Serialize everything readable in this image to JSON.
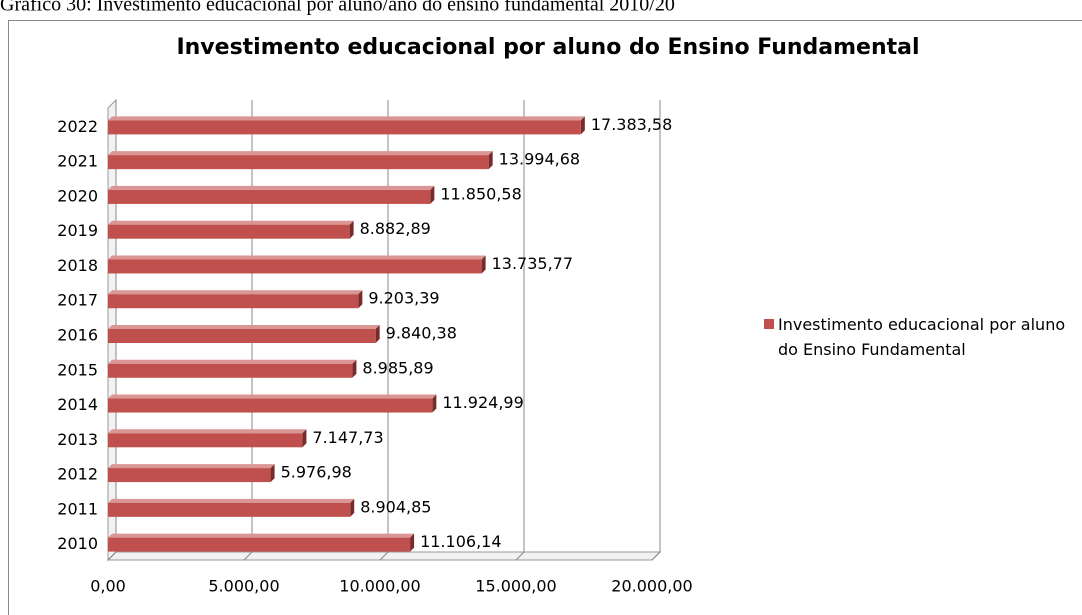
{
  "caption": "Gráfico 30: Investimento educacional por aluno/ano do ensino fundamental 2010/20",
  "chart_data": {
    "type": "bar",
    "orientation": "horizontal",
    "title": "Investimento educacional por aluno do Ensino Fundamental",
    "categories": [
      "2010",
      "2011",
      "2012",
      "2013",
      "2014",
      "2015",
      "2016",
      "2017",
      "2018",
      "2019",
      "2020",
      "2021",
      "2022"
    ],
    "series": [
      {
        "name": "Investimento educacional por aluno do Ensino Fundamental",
        "color": "#c0504d",
        "values": [
          11106.14,
          8904.85,
          5976.98,
          7147.73,
          11924.99,
          8985.89,
          9840.38,
          9203.39,
          13735.77,
          8882.89,
          11850.58,
          13994.68,
          17383.58
        ],
        "value_labels": [
          "11.106,14",
          "8.904,85",
          "5.976,98",
          "7.147,73",
          "11.924,99",
          "8.985,89",
          "9.840,38",
          "9.203,39",
          "13.735,77",
          "8.882,89",
          "11.850,58",
          "13.994,68",
          "17.383,58"
        ]
      }
    ],
    "xlim": [
      0,
      20000
    ],
    "xticks": [
      {
        "value": 0,
        "label": "0,00"
      },
      {
        "value": 5000,
        "label": "5.000,00"
      },
      {
        "value": 10000,
        "label": "10.000,00"
      },
      {
        "value": 15000,
        "label": "15.000,00"
      },
      {
        "value": 20000,
        "label": "20.000,00"
      }
    ],
    "grid": true,
    "legend": "right"
  }
}
